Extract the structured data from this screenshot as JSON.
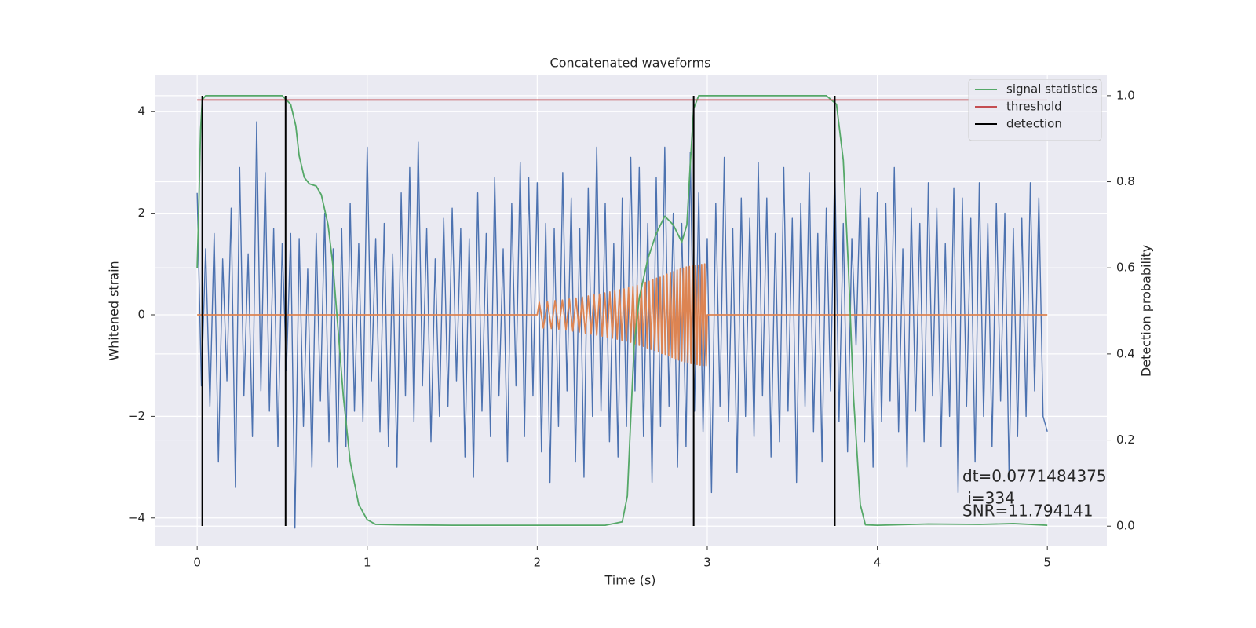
{
  "chart_data": {
    "type": "line",
    "title": "Concatenated waveforms",
    "x_label": "Time (s)",
    "y_label": "Whitened strain",
    "y2_label": "Detection probability",
    "xlim": [
      -0.25,
      5.35
    ],
    "ylim": [
      -4.56,
      4.73
    ],
    "y2lim": [
      -0.047,
      1.049
    ],
    "xticks": [
      0,
      1,
      2,
      3,
      4,
      5
    ],
    "yticks": [
      {
        "value": -4,
        "label": "−4"
      },
      {
        "value": -2,
        "label": "−2"
      },
      0,
      2,
      4
    ],
    "y2ticks": [
      {
        "value": 0,
        "label": "0.0"
      },
      {
        "value": 0.2,
        "label": "0.2"
      },
      {
        "value": 0.4,
        "label": "0.4"
      },
      {
        "value": 0.6,
        "label": "0.6"
      },
      {
        "value": 0.8,
        "label": "0.8"
      },
      {
        "value": 1,
        "label": "1.0"
      }
    ],
    "grid": true,
    "legend": "upper right",
    "series": [
      {
        "color": "#4c72b0",
        "x": [
          0,
          0.025,
          0.05,
          0.075,
          0.1,
          0.125,
          0.15,
          0.175,
          0.2,
          0.225,
          0.25,
          0.275,
          0.3,
          0.325,
          0.35,
          0.375,
          0.4,
          0.425,
          0.45,
          0.475,
          0.5,
          0.525,
          0.55,
          0.575,
          0.6,
          0.625,
          0.65,
          0.675,
          0.7,
          0.725,
          0.75,
          0.775,
          0.8,
          0.825,
          0.85,
          0.875,
          0.9,
          0.925,
          0.95,
          0.975,
          1,
          1.025,
          1.05,
          1.075,
          1.1,
          1.125,
          1.15,
          1.175,
          1.2,
          1.225,
          1.25,
          1.275,
          1.3,
          1.325,
          1.35,
          1.375,
          1.4,
          1.425,
          1.45,
          1.475,
          1.5,
          1.525,
          1.55,
          1.575,
          1.6,
          1.625,
          1.65,
          1.675,
          1.7,
          1.725,
          1.75,
          1.775,
          1.8,
          1.825,
          1.85,
          1.875,
          1.9,
          1.925,
          1.95,
          1.975,
          2,
          2.025,
          2.05,
          2.075,
          2.1,
          2.125,
          2.15,
          2.175,
          2.2,
          2.225,
          2.25,
          2.275,
          2.3,
          2.325,
          2.35,
          2.375,
          2.4,
          2.425,
          2.45,
          2.475,
          2.5,
          2.525,
          2.55,
          2.575,
          2.6,
          2.625,
          2.65,
          2.675,
          2.7,
          2.725,
          2.75,
          2.775,
          2.8,
          2.825,
          2.85,
          2.875,
          2.9,
          2.925,
          2.95,
          2.975,
          3,
          3.025,
          3.05,
          3.075,
          3.1,
          3.125,
          3.15,
          3.175,
          3.2,
          3.225,
          3.25,
          3.275,
          3.3,
          3.325,
          3.35,
          3.375,
          3.4,
          3.425,
          3.45,
          3.475,
          3.5,
          3.525,
          3.55,
          3.575,
          3.6,
          3.625,
          3.65,
          3.675,
          3.7,
          3.725,
          3.75,
          3.775,
          3.8,
          3.825,
          3.85,
          3.875,
          3.9,
          3.925,
          3.95,
          3.975,
          4,
          4.025,
          4.05,
          4.075,
          4.1,
          4.125,
          4.15,
          4.175,
          4.2,
          4.225,
          4.25,
          4.275,
          4.3,
          4.325,
          4.35,
          4.375,
          4.4,
          4.425,
          4.45,
          4.475,
          4.5,
          4.525,
          4.55,
          4.575,
          4.6,
          4.625,
          4.65,
          4.675,
          4.7,
          4.725,
          4.75,
          4.775,
          4.8,
          4.825,
          4.85,
          4.875,
          4.9,
          4.925,
          4.95,
          4.975,
          5
        ],
        "values": [
          2.4,
          -1.4,
          1.3,
          -1.8,
          1.6,
          -2.9,
          1.1,
          -1.3,
          2.1,
          -3.4,
          2.9,
          -1.6,
          1.2,
          -2.4,
          3.8,
          -1.5,
          2.8,
          -1.9,
          1.7,
          -2.6,
          1.4,
          -1.1,
          1.6,
          -4.2,
          1.5,
          -2.2,
          0.9,
          -3.0,
          1.6,
          -1.7,
          2.0,
          -2.5,
          1.3,
          -3.0,
          1.7,
          -2.6,
          2.2,
          -1.9,
          1.4,
          -2.1,
          3.3,
          -1.3,
          1.5,
          -2.3,
          1.8,
          -2.6,
          1.2,
          -3.0,
          2.4,
          -1.6,
          2.9,
          -2.1,
          3.4,
          -1.4,
          1.7,
          -2.5,
          1.1,
          -2.0,
          1.9,
          -1.8,
          2.1,
          -1.3,
          1.7,
          -2.8,
          1.5,
          -3.2,
          2.4,
          -1.9,
          1.6,
          -2.4,
          2.7,
          -1.6,
          1.3,
          -2.9,
          2.2,
          -1.4,
          3.0,
          -2.4,
          2.7,
          -1.6,
          2.6,
          -2.7,
          1.8,
          -3.3,
          1.7,
          -2.2,
          2.8,
          -1.5,
          2.3,
          -2.9,
          1.7,
          -3.2,
          2.5,
          -2.0,
          3.3,
          -1.9,
          2.2,
          -2.5,
          1.4,
          -2.8,
          2.3,
          -2.2,
          3.1,
          -1.5,
          2.9,
          -2.4,
          1.8,
          -3.3,
          2.7,
          -2.2,
          3.3,
          -1.8,
          2.0,
          -3.0,
          1.8,
          -2.6,
          3.2,
          -1.9,
          2.4,
          -2.3,
          1.5,
          -3.5,
          2.2,
          -1.8,
          3.1,
          -2.1,
          1.7,
          -3.1,
          2.3,
          -2.0,
          1.9,
          -2.4,
          3.0,
          -1.6,
          2.3,
          -2.8,
          1.6,
          -2.5,
          2.9,
          -1.9,
          1.9,
          -3.3,
          2.2,
          -1.8,
          2.8,
          -2.3,
          1.6,
          -2.9,
          2.1,
          -1.5,
          3.0,
          -2.1,
          1.8,
          -2.7,
          1.5,
          -0.6,
          2.5,
          -2.5,
          1.9,
          -3.0,
          2.4,
          -2.1,
          2.2,
          -1.7,
          2.9,
          -2.3,
          1.3,
          -3.0,
          2.1,
          -1.9,
          1.8,
          -2.5,
          2.6,
          -1.6,
          2.1,
          -2.6,
          1.4,
          -2.0,
          2.5,
          -3.5,
          2.3,
          -1.8,
          1.9,
          -2.9,
          2.6,
          -2.0,
          1.8,
          -2.6,
          2.2,
          -1.7,
          2.0,
          -3.2,
          1.7,
          -2.4,
          1.9,
          -2.0,
          2.6,
          -1.5,
          2.3,
          -2.0,
          -2.3
        ]
      },
      {
        "color": "#dd8452",
        "x": [
          0,
          2,
          2.012,
          2.036,
          2.06,
          2.083,
          2.105,
          2.127,
          2.148,
          2.169,
          2.189,
          2.209,
          2.228,
          2.247,
          2.265,
          2.283,
          2.3,
          2.317,
          2.334,
          2.35,
          2.366,
          2.382,
          2.397,
          2.412,
          2.427,
          2.442,
          2.456,
          2.47,
          2.484,
          2.498,
          2.511,
          2.524,
          2.537,
          2.55,
          2.563,
          2.576,
          2.588,
          2.6,
          2.612,
          2.624,
          2.636,
          2.647,
          2.658,
          2.669,
          2.68,
          2.691,
          2.702,
          2.713,
          2.723,
          2.733,
          2.743,
          2.753,
          2.763,
          2.773,
          2.783,
          2.793,
          2.803,
          2.813,
          2.823,
          2.832,
          2.841,
          2.85,
          2.859,
          2.868,
          2.877,
          2.886,
          2.895,
          2.904,
          2.913,
          2.922,
          2.931,
          2.94,
          2.949,
          2.958,
          2.967,
          2.976,
          2.985,
          2.994,
          3,
          5
        ],
        "values": [
          0,
          0,
          0.25,
          -0.26,
          0.26,
          -0.27,
          0.28,
          -0.28,
          0.29,
          -0.3,
          0.31,
          -0.32,
          0.33,
          -0.34,
          0.35,
          -0.36,
          0.37,
          -0.38,
          0.39,
          -0.4,
          0.41,
          -0.42,
          0.43,
          -0.44,
          0.45,
          -0.46,
          0.47,
          -0.48,
          0.49,
          -0.5,
          0.51,
          -0.52,
          0.53,
          -0.54,
          0.56,
          -0.57,
          0.58,
          -0.6,
          0.61,
          -0.62,
          0.64,
          -0.65,
          0.66,
          -0.68,
          0.69,
          -0.7,
          0.72,
          -0.73,
          0.74,
          -0.76,
          0.77,
          -0.78,
          0.8,
          -0.81,
          0.82,
          -0.84,
          0.85,
          -0.86,
          0.88,
          -0.89,
          0.9,
          -0.91,
          0.92,
          -0.93,
          0.94,
          -0.95,
          0.95,
          -0.96,
          0.96,
          -0.97,
          0.97,
          -0.98,
          0.98,
          -0.99,
          0.99,
          -1.0,
          1.0,
          -1.0,
          0,
          0
        ]
      },
      {
        "name": "signal statistics",
        "color": "#55a868",
        "axis": "y2",
        "x": [
          0,
          0.01,
          0.02,
          0.03,
          0.05,
          0.1,
          0.5,
          0.55,
          0.58,
          0.6,
          0.63,
          0.66,
          0.7,
          0.73,
          0.77,
          0.8,
          0.83,
          0.86,
          0.9,
          0.95,
          1.0,
          1.05,
          1.2,
          1.5,
          2.0,
          2.4,
          2.5,
          2.53,
          2.55,
          2.57,
          2.6,
          2.65,
          2.7,
          2.75,
          2.8,
          2.85,
          2.88,
          2.9,
          2.92,
          2.95,
          3.0,
          3.7,
          3.76,
          3.8,
          3.83,
          3.86,
          3.9,
          3.93,
          4.0,
          4.3,
          4.6,
          4.8,
          5.0
        ],
        "values": [
          0.6,
          0.75,
          0.92,
          0.99,
          1.0,
          1.0,
          1.0,
          0.98,
          0.93,
          0.86,
          0.81,
          0.795,
          0.79,
          0.77,
          0.7,
          0.6,
          0.45,
          0.3,
          0.15,
          0.05,
          0.015,
          0.004,
          0.003,
          0.002,
          0.002,
          0.002,
          0.01,
          0.07,
          0.25,
          0.42,
          0.53,
          0.62,
          0.68,
          0.72,
          0.7,
          0.66,
          0.7,
          0.84,
          0.97,
          1.0,
          1.0,
          1.0,
          0.98,
          0.85,
          0.6,
          0.3,
          0.05,
          0.003,
          0.002,
          0.005,
          0.004,
          0.006,
          0.002
        ]
      },
      {
        "name": "threshold",
        "color": "#c44e52",
        "axis": "y2",
        "x": [
          0,
          5
        ],
        "values": [
          0.99,
          0.99
        ]
      }
    ],
    "detections": {
      "name": "detection",
      "color": "#000000",
      "x": [
        0.03,
        0.52,
        2.92,
        3.75
      ]
    },
    "annotation": [
      "dt=0.0771484375",
      " i=334",
      "SNR=11.794141"
    ]
  }
}
